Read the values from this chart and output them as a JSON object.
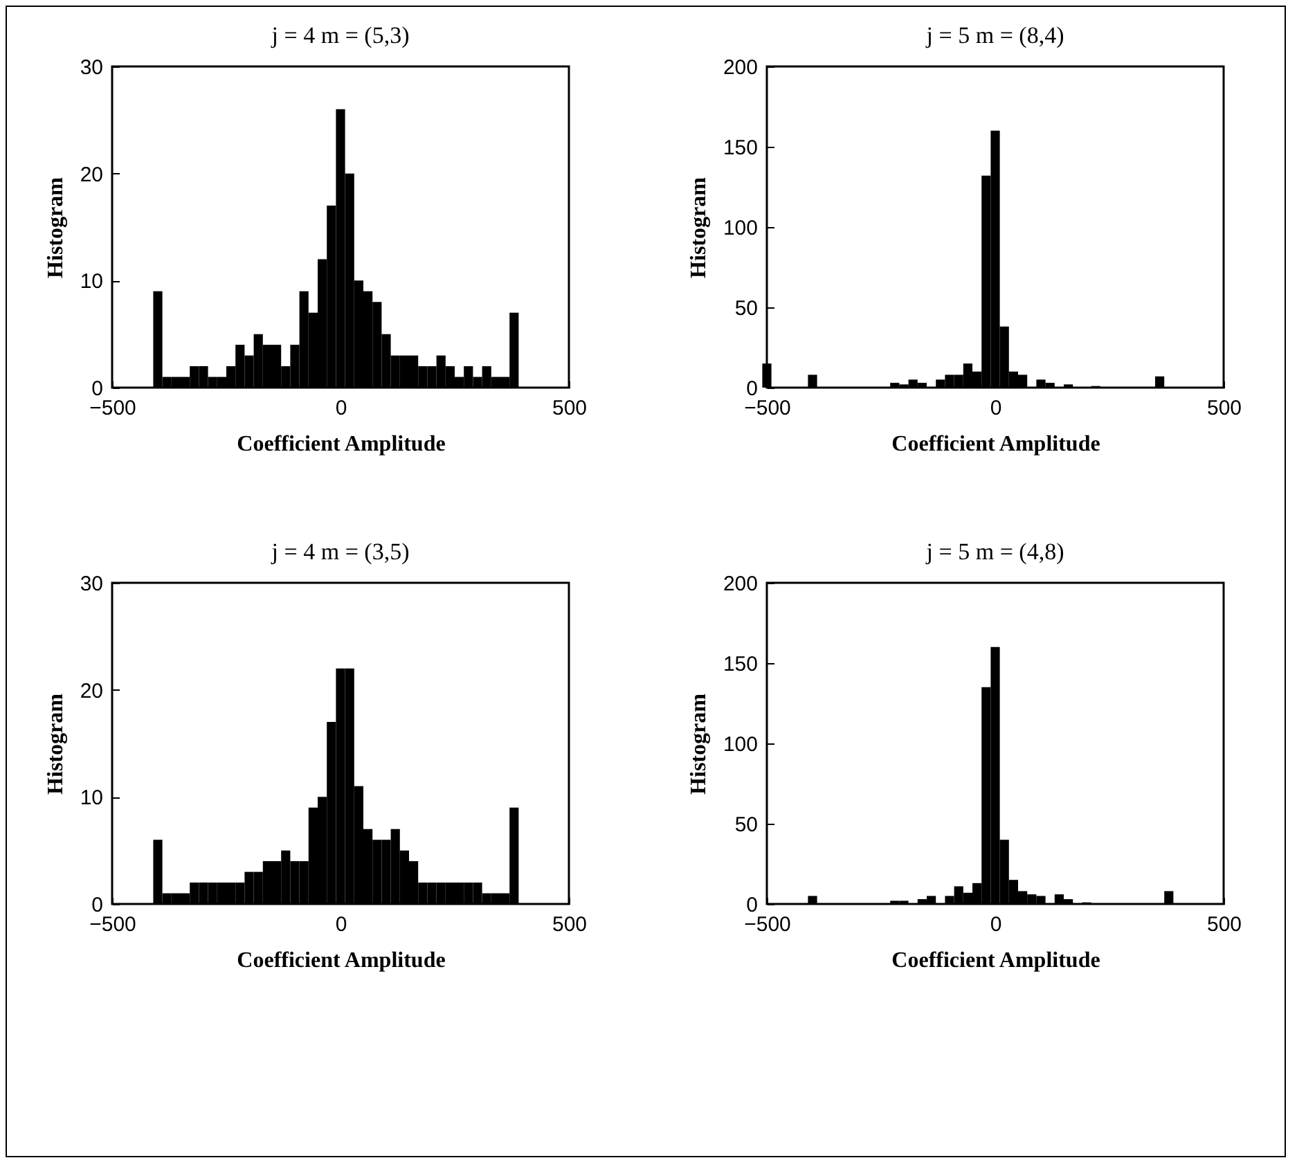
{
  "chart_data": [
    {
      "type": "histogram",
      "title": "j = 4  m = (5,3)",
      "xlabel": "Coefficient Amplitude",
      "ylabel": "Histogram",
      "color": "#000000",
      "grid": false,
      "xlim": [
        -500,
        500
      ],
      "xticks": [
        -500,
        0,
        500
      ],
      "ylim": [
        0,
        30
      ],
      "yticks": [
        0,
        10,
        20,
        30
      ],
      "bins": [
        -410,
        -390,
        -370,
        -350,
        -330,
        -310,
        -290,
        -270,
        -250,
        -230,
        -210,
        -190,
        -170,
        -150,
        -130,
        -110,
        -90,
        -70,
        -50,
        -30,
        -10,
        10,
        30,
        50,
        70,
        90,
        110,
        130,
        150,
        170,
        190,
        210,
        230,
        250,
        270,
        290,
        310,
        330,
        350,
        370,
        390
      ],
      "values": [
        9,
        1,
        1,
        1,
        2,
        2,
        1,
        1,
        2,
        4,
        3,
        5,
        4,
        4,
        2,
        4,
        9,
        7,
        12,
        17,
        26,
        20,
        10,
        9,
        8,
        5,
        3,
        3,
        3,
        2,
        2,
        3,
        2,
        1,
        2,
        1,
        2,
        1,
        1,
        7
      ]
    },
    {
      "type": "histogram",
      "title": "j = 5  m = (8,4)",
      "xlabel": "Coefficient Amplitude",
      "ylabel": "Histogram",
      "color": "#000000",
      "grid": false,
      "xlim": [
        -500,
        500
      ],
      "xticks": [
        -500,
        0,
        500
      ],
      "ylim": [
        0,
        200
      ],
      "yticks": [
        0,
        50,
        100,
        150,
        200
      ],
      "bins": [
        -510,
        -490,
        -470,
        -450,
        -430,
        -410,
        -390,
        -370,
        -350,
        -330,
        -310,
        -290,
        -270,
        -250,
        -230,
        -210,
        -190,
        -170,
        -150,
        -130,
        -110,
        -90,
        -70,
        -50,
        -30,
        -10,
        10,
        30,
        50,
        70,
        90,
        110,
        130,
        150,
        170,
        190,
        210,
        230,
        250,
        270,
        290,
        310,
        330,
        350,
        370,
        390
      ],
      "values": [
        15,
        0,
        0,
        0,
        0,
        8,
        0,
        0,
        0,
        0,
        0,
        0,
        0,
        0,
        3,
        2,
        5,
        3,
        0,
        5,
        8,
        8,
        15,
        10,
        132,
        160,
        38,
        10,
        8,
        0,
        5,
        3,
        0,
        2,
        0,
        0,
        1,
        0,
        0,
        0,
        0,
        0,
        0,
        7,
        0
      ]
    },
    {
      "type": "histogram",
      "title": "j = 4  m = (3,5)",
      "xlabel": "Coefficient Amplitude",
      "ylabel": "Histogram",
      "color": "#000000",
      "grid": false,
      "xlim": [
        -500,
        500
      ],
      "xticks": [
        -500,
        0,
        500
      ],
      "ylim": [
        0,
        30
      ],
      "yticks": [
        0,
        10,
        20,
        30
      ],
      "bins": [
        -410,
        -390,
        -370,
        -350,
        -330,
        -310,
        -290,
        -270,
        -250,
        -230,
        -210,
        -190,
        -170,
        -150,
        -130,
        -110,
        -90,
        -70,
        -50,
        -30,
        -10,
        10,
        30,
        50,
        70,
        90,
        110,
        130,
        150,
        170,
        190,
        210,
        230,
        250,
        270,
        290,
        310,
        330,
        350,
        370,
        390
      ],
      "values": [
        6,
        1,
        1,
        1,
        2,
        2,
        2,
        2,
        2,
        2,
        3,
        3,
        4,
        4,
        5,
        4,
        4,
        9,
        10,
        17,
        22,
        22,
        11,
        7,
        6,
        6,
        7,
        5,
        4,
        2,
        2,
        2,
        2,
        2,
        2,
        2,
        1,
        1,
        1,
        9
      ]
    },
    {
      "type": "histogram",
      "title": "j = 5  m = (4,8)",
      "xlabel": "Coefficient Amplitude",
      "ylabel": "Histogram",
      "color": "#000000",
      "grid": false,
      "xlim": [
        -500,
        500
      ],
      "xticks": [
        -500,
        0,
        500
      ],
      "ylim": [
        0,
        200
      ],
      "yticks": [
        0,
        50,
        100,
        150,
        200
      ],
      "bins": [
        -410,
        -390,
        -370,
        -350,
        -330,
        -310,
        -290,
        -270,
        -250,
        -230,
        -210,
        -190,
        -170,
        -150,
        -130,
        -110,
        -90,
        -70,
        -50,
        -30,
        -10,
        10,
        30,
        50,
        70,
        90,
        110,
        130,
        150,
        170,
        190,
        210,
        230,
        250,
        270,
        290,
        310,
        330,
        350,
        370,
        390
      ],
      "values": [
        5,
        0,
        0,
        0,
        0,
        0,
        0,
        0,
        0,
        2,
        2,
        0,
        3,
        5,
        0,
        5,
        11,
        7,
        13,
        135,
        160,
        40,
        15,
        8,
        6,
        5,
        0,
        6,
        3,
        0,
        1,
        0,
        0,
        0,
        0,
        0,
        0,
        0,
        0,
        8
      ]
    }
  ]
}
